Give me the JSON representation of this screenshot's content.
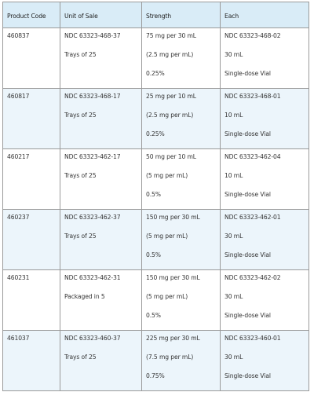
{
  "table": {
    "headers": [
      "Product Code",
      "Unit of Sale",
      "Strength",
      "Each"
    ],
    "rows": [
      {
        "product_code": "460837",
        "unit_of_sale": [
          "NDC 63323-468-37",
          "Trays of 25"
        ],
        "strength": [
          "75 mg per 30 mL",
          "(2.5 mg per mL)",
          "0.25%"
        ],
        "each": [
          "NDC 63323-468-02",
          "30 mL",
          "Single-dose Vial"
        ]
      },
      {
        "product_code": "460817",
        "unit_of_sale": [
          "NDC 63323-468-17",
          "Trays of 25"
        ],
        "strength": [
          "25 mg per 10 mL",
          "(2.5 mg per mL)",
          "0.25%"
        ],
        "each": [
          "NDC 63323-468-01",
          "10 mL",
          "Single-dose Vial"
        ]
      },
      {
        "product_code": "460217",
        "unit_of_sale": [
          "NDC 63323-462-17",
          "Trays of 25"
        ],
        "strength": [
          "50 mg per 10 mL",
          "(5 mg per mL)",
          "0.5%"
        ],
        "each": [
          "NDC 63323-462-04",
          "10 mL",
          "Single-dose Vial"
        ]
      },
      {
        "product_code": "460237",
        "unit_of_sale": [
          "NDC 63323-462-37",
          "Trays of 25"
        ],
        "strength": [
          "150 mg per 30 mL",
          "(5 mg per mL)",
          "0.5%"
        ],
        "each": [
          "NDC 63323-462-01",
          "30 mL",
          "Single-dose Vial"
        ]
      },
      {
        "product_code": "460231",
        "unit_of_sale": [
          "NDC 63323-462-31",
          "Packaged in 5"
        ],
        "strength": [
          "150 mg per 30 mL",
          "(5 mg per mL)",
          "0.5%"
        ],
        "each": [
          "NDC 63323-462-02",
          "30 mL",
          "Single-dose Vial"
        ]
      },
      {
        "product_code": "461037",
        "unit_of_sale": [
          "NDC 63323-460-37",
          "Trays of 25"
        ],
        "strength": [
          "225 mg per 30 mL",
          "(7.5 mg per mL)",
          "0.75%"
        ],
        "each": [
          "NDC 63323-460-01",
          "30 mL",
          "Single-dose Vial"
        ]
      }
    ]
  }
}
